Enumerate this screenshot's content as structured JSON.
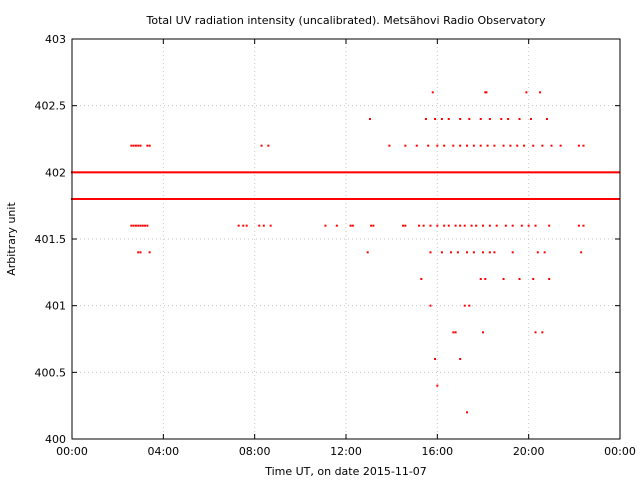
{
  "chart_data": {
    "type": "scatter",
    "title": "Total UV radiation intensity (uncalibrated). Metsähovi Radio Observatory",
    "xlabel": "Time UT, on date 2015-11-07",
    "ylabel": "Arbitrary unit",
    "xlim": [
      0,
      24
    ],
    "ylim": [
      400,
      403
    ],
    "x_tick_values": [
      0,
      4,
      8,
      12,
      16,
      20,
      24
    ],
    "x_tick_labels": [
      "00:00",
      "04:00",
      "08:00",
      "12:00",
      "16:00",
      "20:00",
      "00:00"
    ],
    "y_tick_values": [
      400,
      400.5,
      401,
      401.5,
      402,
      402.5,
      403
    ],
    "y_tick_labels": [
      "400",
      "400.5",
      "401",
      "401.5",
      "402",
      "402.5",
      "403"
    ],
    "grid": true,
    "color": "#ff0000",
    "series": [
      {
        "points": [
          [
            2.6,
            402.2
          ],
          [
            2.7,
            402.2
          ],
          [
            2.8,
            402.2
          ],
          [
            2.9,
            402.2
          ],
          [
            3.0,
            402.2
          ],
          [
            3.3,
            402.2
          ],
          [
            3.4,
            402.2
          ],
          [
            8.3,
            402.2
          ],
          [
            8.6,
            402.2
          ],
          [
            13.05,
            402.4
          ],
          [
            15.8,
            402.6
          ],
          [
            18.1,
            402.6
          ],
          [
            18.15,
            402.6
          ],
          [
            19.9,
            402.6
          ],
          [
            20.5,
            402.6
          ],
          [
            15.5,
            402.4
          ],
          [
            15.9,
            402.4
          ],
          [
            16.2,
            402.4
          ],
          [
            16.5,
            402.4
          ],
          [
            17.0,
            402.4
          ],
          [
            17.4,
            402.4
          ],
          [
            17.9,
            402.4
          ],
          [
            18.3,
            402.4
          ],
          [
            18.8,
            402.4
          ],
          [
            19.1,
            402.4
          ],
          [
            19.6,
            402.4
          ],
          [
            20.1,
            402.4
          ],
          [
            20.8,
            402.4
          ],
          [
            13.9,
            402.2
          ],
          [
            14.6,
            402.2
          ],
          [
            15.1,
            402.2
          ],
          [
            15.6,
            402.2
          ],
          [
            16.0,
            402.2
          ],
          [
            16.3,
            402.2
          ],
          [
            16.7,
            402.2
          ],
          [
            17.0,
            402.2
          ],
          [
            17.3,
            402.2
          ],
          [
            17.6,
            402.2
          ],
          [
            17.9,
            402.2
          ],
          [
            18.2,
            402.2
          ],
          [
            18.5,
            402.2
          ],
          [
            18.9,
            402.2
          ],
          [
            19.2,
            402.2
          ],
          [
            19.5,
            402.2
          ],
          [
            19.8,
            402.2
          ],
          [
            20.2,
            402.2
          ],
          [
            20.6,
            402.2
          ],
          [
            21.0,
            402.2
          ],
          [
            21.4,
            402.2
          ],
          [
            22.2,
            402.2
          ],
          [
            22.4,
            402.2
          ],
          [
            2.6,
            401.6
          ],
          [
            2.7,
            401.6
          ],
          [
            2.8,
            401.6
          ],
          [
            2.9,
            401.6
          ],
          [
            3.0,
            401.6
          ],
          [
            3.1,
            401.6
          ],
          [
            3.2,
            401.6
          ],
          [
            3.3,
            401.6
          ],
          [
            7.3,
            401.6
          ],
          [
            7.5,
            401.6
          ],
          [
            7.65,
            401.6
          ],
          [
            8.2,
            401.6
          ],
          [
            8.4,
            401.6
          ],
          [
            8.7,
            401.6
          ],
          [
            11.1,
            401.6
          ],
          [
            11.6,
            401.6
          ],
          [
            12.2,
            401.6
          ],
          [
            12.3,
            401.6
          ],
          [
            13.1,
            401.6
          ],
          [
            13.2,
            401.6
          ],
          [
            14.5,
            401.6
          ],
          [
            14.6,
            401.6
          ],
          [
            15.2,
            401.6
          ],
          [
            15.4,
            401.6
          ],
          [
            15.7,
            401.6
          ],
          [
            16.0,
            401.6
          ],
          [
            16.3,
            401.6
          ],
          [
            16.5,
            401.6
          ],
          [
            16.8,
            401.6
          ],
          [
            17.0,
            401.6
          ],
          [
            17.2,
            401.6
          ],
          [
            17.5,
            401.6
          ],
          [
            17.7,
            401.6
          ],
          [
            18.0,
            401.6
          ],
          [
            18.3,
            401.6
          ],
          [
            18.6,
            401.6
          ],
          [
            19.0,
            401.6
          ],
          [
            19.3,
            401.6
          ],
          [
            19.7,
            401.6
          ],
          [
            20.0,
            401.6
          ],
          [
            20.3,
            401.6
          ],
          [
            20.9,
            401.6
          ],
          [
            22.2,
            401.6
          ],
          [
            22.4,
            401.6
          ],
          [
            2.9,
            401.4
          ],
          [
            3.0,
            401.4
          ],
          [
            3.4,
            401.4
          ],
          [
            12.95,
            401.4
          ],
          [
            15.7,
            401.4
          ],
          [
            16.2,
            401.4
          ],
          [
            16.6,
            401.4
          ],
          [
            16.9,
            401.4
          ],
          [
            17.3,
            401.4
          ],
          [
            17.6,
            401.4
          ],
          [
            18.0,
            401.4
          ],
          [
            18.3,
            401.4
          ],
          [
            18.5,
            401.4
          ],
          [
            19.3,
            401.4
          ],
          [
            20.4,
            401.4
          ],
          [
            20.7,
            401.4
          ],
          [
            22.3,
            401.4
          ],
          [
            15.3,
            401.2
          ],
          [
            17.9,
            401.2
          ],
          [
            18.1,
            401.2
          ],
          [
            18.9,
            401.2
          ],
          [
            19.6,
            401.2
          ],
          [
            20.2,
            401.2
          ],
          [
            20.9,
            401.2
          ],
          [
            15.7,
            401.0
          ],
          [
            17.2,
            401.0
          ],
          [
            17.4,
            401.0
          ],
          [
            16.7,
            400.8
          ],
          [
            16.8,
            400.8
          ],
          [
            18.0,
            400.8
          ],
          [
            20.3,
            400.8
          ],
          [
            20.6,
            400.8
          ],
          [
            15.9,
            400.6
          ],
          [
            17.0,
            400.6
          ],
          [
            16.0,
            400.4
          ],
          [
            17.3,
            400.2
          ]
        ],
        "dense_levels": [
          {
            "y": 402.0,
            "x_start": 0.0,
            "x_end": 24.0
          },
          {
            "y": 401.8,
            "x_start": 0.0,
            "x_end": 24.0
          }
        ]
      }
    ]
  }
}
